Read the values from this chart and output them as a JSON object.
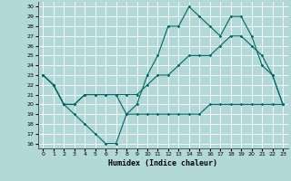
{
  "xlabel": "Humidex (Indice chaleur)",
  "bg_color": "#b2d8d8",
  "grid_color": "#ffffff",
  "line_color": "#006666",
  "xlim": [
    -0.5,
    23.5
  ],
  "ylim": [
    15.5,
    30.5
  ],
  "xticks": [
    0,
    1,
    2,
    3,
    4,
    5,
    6,
    7,
    8,
    9,
    10,
    11,
    12,
    13,
    14,
    15,
    16,
    17,
    18,
    19,
    20,
    21,
    22,
    23
  ],
  "yticks": [
    16,
    17,
    18,
    19,
    20,
    21,
    22,
    23,
    24,
    25,
    26,
    27,
    28,
    29,
    30
  ],
  "line1_x": [
    0,
    1,
    2,
    3,
    4,
    5,
    6,
    7,
    8,
    9,
    10,
    11,
    12,
    13,
    14,
    15,
    16,
    17,
    18,
    19,
    20,
    21,
    22,
    23
  ],
  "line1_y": [
    23,
    22,
    20,
    19,
    18,
    17,
    16,
    16,
    19,
    19,
    19,
    19,
    19,
    19,
    19,
    19,
    20,
    20,
    20,
    20,
    20,
    20,
    20,
    20
  ],
  "line2_x": [
    0,
    1,
    2,
    3,
    4,
    5,
    6,
    7,
    8,
    9,
    10,
    11,
    12,
    13,
    14,
    15,
    16,
    17,
    18,
    19,
    20,
    21,
    22,
    23
  ],
  "line2_y": [
    23,
    22,
    20,
    20,
    21,
    21,
    21,
    21,
    21,
    21,
    22,
    23,
    23,
    24,
    25,
    25,
    25,
    26,
    27,
    27,
    26,
    25,
    23,
    20
  ],
  "line3_x": [
    0,
    1,
    2,
    3,
    4,
    5,
    6,
    7,
    8,
    9,
    10,
    11,
    12,
    13,
    14,
    15,
    16,
    17,
    18,
    19,
    20,
    21,
    22,
    23
  ],
  "line3_y": [
    23,
    22,
    20,
    20,
    21,
    21,
    21,
    21,
    19,
    20,
    23,
    25,
    28,
    28,
    30,
    29,
    28,
    27,
    29,
    29,
    27,
    24,
    23,
    20
  ]
}
